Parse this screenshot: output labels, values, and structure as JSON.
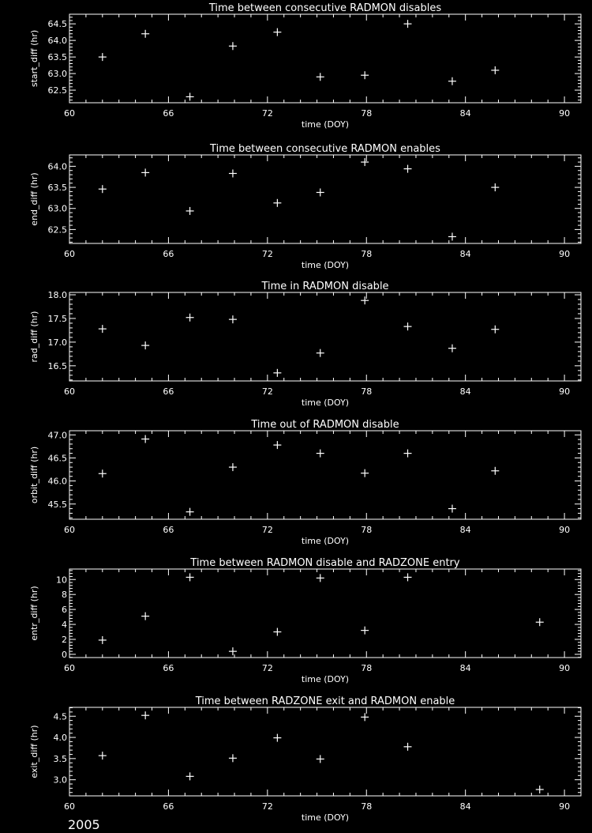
{
  "footer_year": "2005",
  "colors": {
    "background": "#000000",
    "foreground": "#ffffff"
  },
  "chart_data": [
    {
      "type": "scatter",
      "title": "Time between consecutive RADMON disables",
      "xlabel": "time (DOY)",
      "ylabel": "start_diff (hr)",
      "xlim": [
        60,
        91
      ],
      "ylim": [
        62.12,
        64.79
      ],
      "xticks": [
        60,
        66,
        72,
        78,
        84,
        90
      ],
      "yticks": [
        "62.5",
        "63.0",
        "63.5",
        "64.0",
        "64.5"
      ],
      "marker": "plus",
      "grid": false,
      "x": [
        62.0,
        64.6,
        67.3,
        69.9,
        72.6,
        75.2,
        77.9,
        80.5,
        83.2,
        85.8
      ],
      "y": [
        63.5,
        64.2,
        62.3,
        63.83,
        64.25,
        62.9,
        62.95,
        64.5,
        62.77,
        63.1
      ]
    },
    {
      "type": "scatter",
      "title": "Time between consecutive RADMON enables",
      "xlabel": "time (DOY)",
      "ylabel": "end_diff (hr)",
      "xlim": [
        60,
        91
      ],
      "ylim": [
        62.17,
        64.27
      ],
      "xticks": [
        60,
        66,
        72,
        78,
        84,
        90
      ],
      "yticks": [
        "62.5",
        "63.0",
        "63.5",
        "64.0"
      ],
      "marker": "plus",
      "grid": false,
      "x": [
        62.0,
        64.6,
        67.3,
        69.9,
        72.6,
        75.2,
        77.9,
        80.5,
        83.2,
        85.8
      ],
      "y": [
        63.46,
        63.85,
        62.94,
        63.83,
        63.13,
        63.38,
        64.1,
        63.94,
        62.33,
        63.5
      ]
    },
    {
      "type": "scatter",
      "title": "Time in RADMON disable",
      "xlabel": "time (DOY)",
      "ylabel": "rad_diff (hr)",
      "xlim": [
        60,
        91
      ],
      "ylim": [
        16.18,
        18.05
      ],
      "xticks": [
        60,
        66,
        72,
        78,
        84,
        90
      ],
      "yticks": [
        "16.5",
        "17.0",
        "17.5",
        "18.0"
      ],
      "marker": "plus",
      "grid": false,
      "x": [
        62.0,
        64.6,
        67.3,
        69.9,
        72.6,
        75.2,
        77.9,
        80.5,
        83.2,
        85.8
      ],
      "y": [
        17.28,
        16.93,
        17.52,
        17.48,
        16.35,
        16.77,
        17.88,
        17.33,
        16.87,
        17.27
      ]
    },
    {
      "type": "scatter",
      "title": "Time out of RADMON disable",
      "xlabel": "time (DOY)",
      "ylabel": "orbit_diff (hr)",
      "xlim": [
        60,
        91
      ],
      "ylim": [
        45.17,
        47.09
      ],
      "xticks": [
        60,
        66,
        72,
        78,
        84,
        90
      ],
      "yticks": [
        "45.5",
        "46.0",
        "46.5",
        "47.0"
      ],
      "marker": "plus",
      "grid": false,
      "x": [
        62.0,
        64.6,
        67.3,
        69.9,
        72.6,
        75.2,
        77.9,
        80.5,
        83.2,
        85.8
      ],
      "y": [
        46.16,
        46.91,
        45.33,
        46.3,
        46.78,
        46.6,
        46.17,
        46.6,
        45.4,
        46.22
      ]
    },
    {
      "type": "scatter",
      "title": "Time between RADMON disable and RADZONE entry",
      "xlabel": "time (DOY)",
      "ylabel": "entr_diff (hr)",
      "xlim": [
        60,
        91
      ],
      "ylim": [
        -0.43,
        11.4
      ],
      "xticks": [
        60,
        66,
        72,
        78,
        84,
        90
      ],
      "yticks": [
        "0",
        "2",
        "4",
        "6",
        "8",
        "10"
      ],
      "marker": "plus",
      "grid": false,
      "x": [
        62.0,
        64.6,
        67.3,
        69.9,
        72.6,
        75.2,
        77.9,
        80.5,
        88.5
      ],
      "y": [
        1.9,
        5.1,
        10.3,
        0.4,
        3.0,
        10.2,
        3.2,
        10.3,
        4.3
      ]
    },
    {
      "type": "scatter",
      "title": "Time between RADZONE exit and RADMON enable",
      "xlabel": "time (DOY)",
      "ylabel": "exit_diff (hr)",
      "xlim": [
        60,
        91
      ],
      "ylim": [
        2.62,
        4.71
      ],
      "xticks": [
        60,
        66,
        72,
        78,
        84,
        90
      ],
      "yticks": [
        "3.0",
        "3.5",
        "4.0",
        "4.5"
      ],
      "marker": "plus",
      "grid": false,
      "x": [
        62.0,
        64.6,
        67.3,
        69.9,
        72.6,
        75.2,
        77.9,
        80.5,
        88.5
      ],
      "y": [
        3.57,
        4.52,
        3.08,
        3.51,
        3.99,
        3.49,
        4.48,
        3.78,
        2.77
      ]
    }
  ]
}
